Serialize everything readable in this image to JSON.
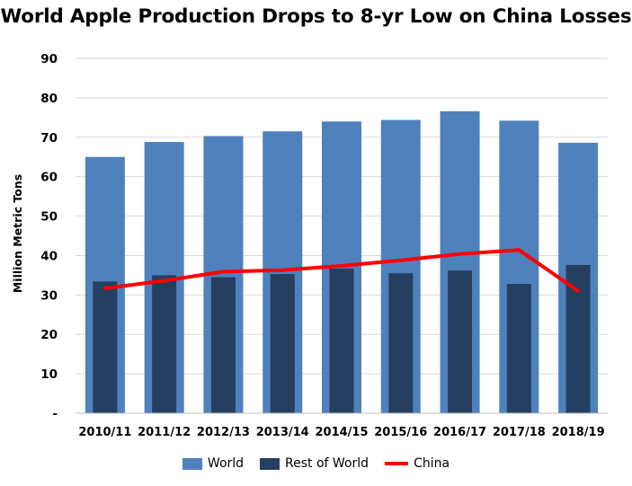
{
  "colors": {
    "world": "#4F81BD",
    "rest_of_world": "#243F60",
    "china": "#FF0000",
    "grid": "#D9D9D9"
  },
  "chart_data": {
    "type": "bar",
    "title": "World Apple Production Drops to 8-yr Low on China Losses",
    "xlabel": "",
    "ylabel": "Million Metric Tons",
    "ylim": [
      0,
      90
    ],
    "yticks": [
      "-",
      "10",
      "20",
      "30",
      "40",
      "50",
      "60",
      "70",
      "80",
      "90"
    ],
    "grid": true,
    "legend_position": "bottom",
    "categories": [
      "2010/11",
      "2011/12",
      "2012/13",
      "2013/14",
      "2014/15",
      "2015/16",
      "2016/17",
      "2017/18",
      "2018/19"
    ],
    "series": [
      {
        "name": "World",
        "kind": "bar",
        "values": [
          65.0,
          68.8,
          70.3,
          71.5,
          74.0,
          74.4,
          76.6,
          74.2,
          68.6
        ]
      },
      {
        "name": "Rest of World",
        "kind": "bar",
        "values": [
          33.4,
          35.0,
          34.5,
          35.3,
          36.7,
          35.5,
          36.2,
          32.8,
          37.6
        ]
      },
      {
        "name": "China",
        "kind": "line",
        "values": [
          31.7,
          33.6,
          35.9,
          36.3,
          37.4,
          38.8,
          40.4,
          41.4,
          31.0
        ]
      }
    ]
  }
}
